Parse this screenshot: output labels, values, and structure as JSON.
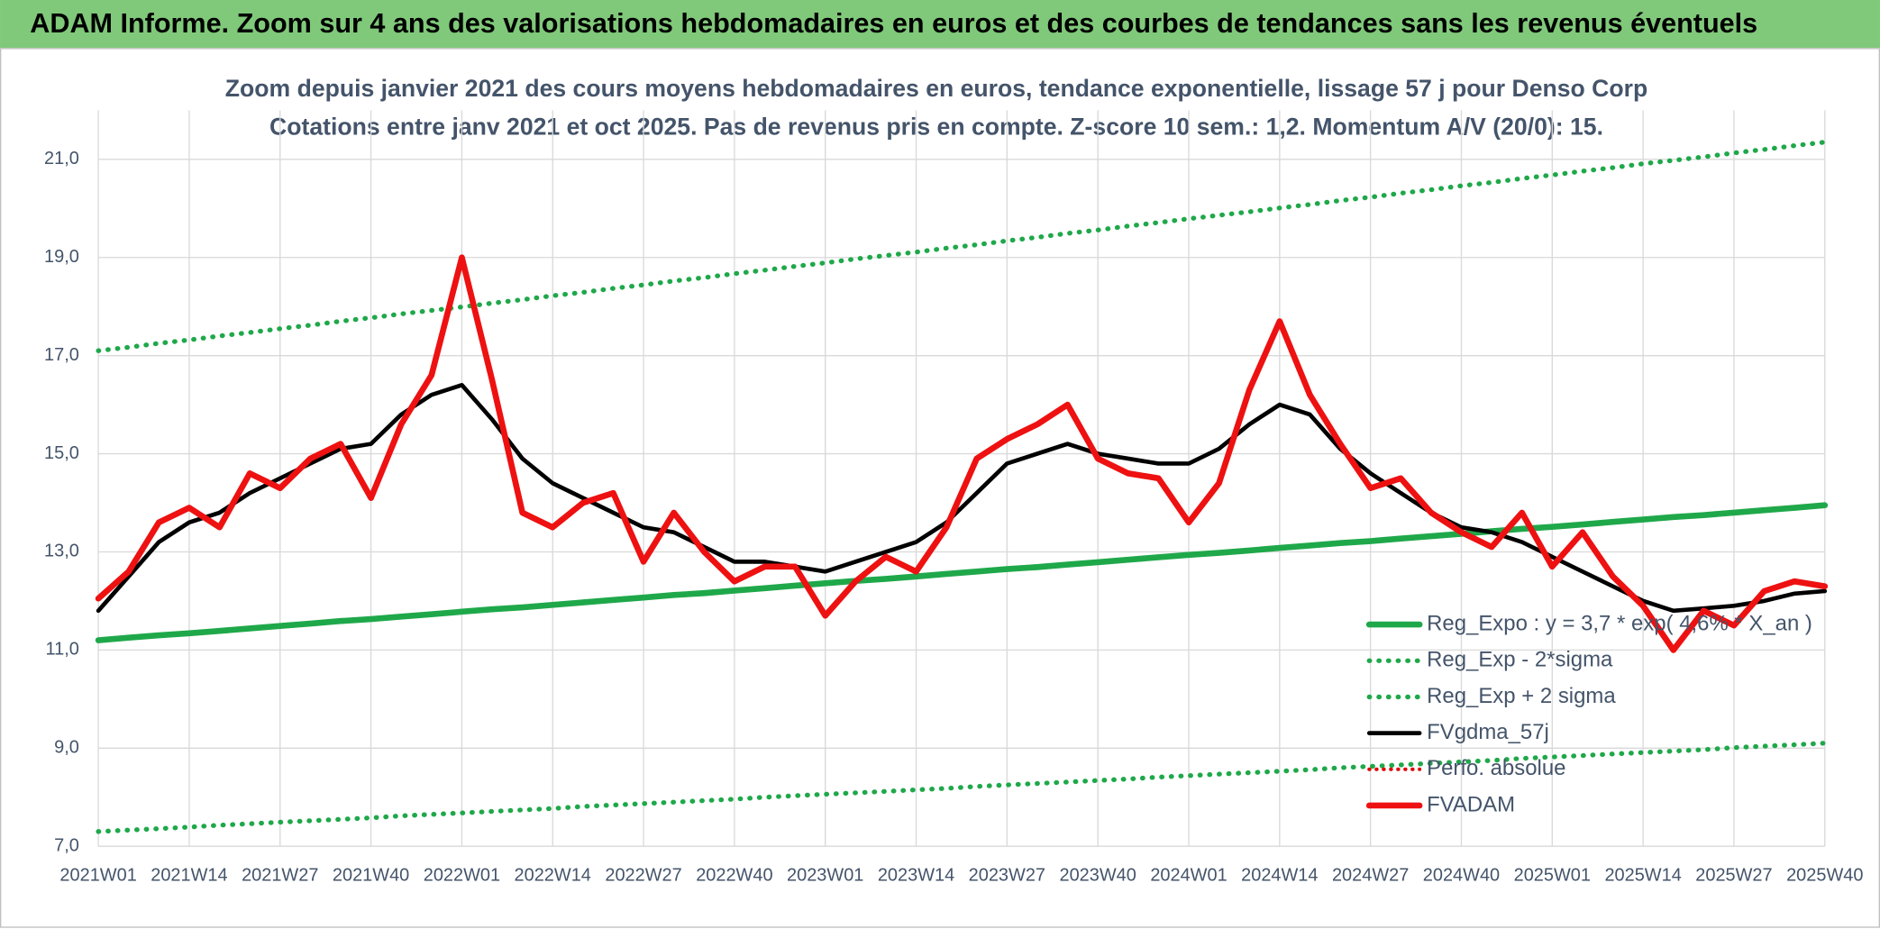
{
  "chart_data": {
    "type": "line",
    "header": "ADAM Informe. Zoom sur 4 ans des valorisations hebdomadaires en euros et des courbes de tendances sans les revenus éventuels",
    "title": "Zoom depuis janvier 2021 des cours moyens hebdomadaires en euros, tendance exponentielle, lissage 57 j pour Denso Corp",
    "subtitle": "Cotations entre janv 2021 et oct 2025. Pas de revenus pris en compte. Z-score 10 sem.: 1,2. Momentum A/V (20/0): 15.",
    "categories": [
      "2021W01",
      null,
      null,
      "2021W14",
      null,
      null,
      "2021W27",
      null,
      null,
      "2021W40",
      null,
      null,
      "2022W01",
      null,
      null,
      "2022W14",
      null,
      null,
      "2022W27",
      null,
      null,
      "2022W40",
      null,
      null,
      "2023W01",
      null,
      null,
      "2023W14",
      null,
      null,
      "2023W27",
      null,
      null,
      "2023W40",
      null,
      null,
      "2024W01",
      null,
      null,
      "2024W14",
      null,
      null,
      "2024W27",
      null,
      null,
      "2024W40",
      null,
      null,
      "2025W01",
      null,
      null,
      "2025W14",
      null,
      null,
      "2025W27",
      null,
      null,
      "2025W40"
    ],
    "ylim": [
      7,
      22
    ],
    "yticks": [
      {
        "value": 7,
        "label": "7,0"
      },
      {
        "value": 9,
        "label": "9,0"
      },
      {
        "value": 11,
        "label": "11,0"
      },
      {
        "value": 13,
        "label": "13,0"
      },
      {
        "value": 15,
        "label": "15,0"
      },
      {
        "value": 17,
        "label": "17,0"
      },
      {
        "value": 19,
        "label": "19,0"
      },
      {
        "value": 21,
        "label": "21,0"
      }
    ],
    "grid": true,
    "legend": "lower right",
    "series": [
      {
        "name": "Reg_Expo : y = 3,7 * exp( 4,6% * X_an )",
        "color": "#1fa84a",
        "style": "solid",
        "width": 5,
        "values": [
          11.2,
          11.25,
          11.3,
          11.34,
          11.39,
          11.44,
          11.49,
          11.54,
          11.59,
          11.63,
          11.68,
          11.73,
          11.78,
          11.83,
          11.87,
          11.92,
          11.97,
          12.02,
          12.07,
          12.12,
          12.16,
          12.21,
          12.26,
          12.31,
          12.36,
          12.41,
          12.45,
          12.5,
          12.55,
          12.6,
          12.65,
          12.69,
          12.74,
          12.79,
          12.84,
          12.89,
          12.94,
          12.98,
          13.03,
          13.08,
          13.13,
          13.18,
          13.22,
          13.27,
          13.32,
          13.37,
          13.42,
          13.47,
          13.51,
          13.56,
          13.61,
          13.66,
          13.71,
          13.75,
          13.8,
          13.85,
          13.9,
          13.95
        ]
      },
      {
        "name": "Reg_Exp - 2*sigma",
        "color": "#1fa84a",
        "style": "dotted",
        "width": 4,
        "values": [
          7.3,
          7.33,
          7.36,
          7.39,
          7.43,
          7.46,
          7.49,
          7.52,
          7.55,
          7.58,
          7.62,
          7.65,
          7.68,
          7.71,
          7.74,
          7.77,
          7.81,
          7.84,
          7.87,
          7.9,
          7.93,
          7.96,
          8.0,
          8.03,
          8.06,
          8.09,
          8.12,
          8.15,
          8.18,
          8.22,
          8.25,
          8.28,
          8.31,
          8.34,
          8.37,
          8.41,
          8.44,
          8.47,
          8.5,
          8.53,
          8.56,
          8.6,
          8.63,
          8.66,
          8.69,
          8.72,
          8.75,
          8.79,
          8.82,
          8.85,
          8.88,
          8.91,
          8.94,
          8.97,
          9.01,
          9.04,
          9.07,
          9.1
        ]
      },
      {
        "name": "Reg_Exp + 2 sigma",
        "color": "#1fa84a",
        "style": "dotted",
        "width": 4,
        "values": [
          17.1,
          17.17,
          17.25,
          17.32,
          17.4,
          17.47,
          17.55,
          17.62,
          17.7,
          17.77,
          17.85,
          17.92,
          17.99,
          18.07,
          18.14,
          18.22,
          18.29,
          18.37,
          18.44,
          18.52,
          18.59,
          18.67,
          18.74,
          18.82,
          18.89,
          18.97,
          19.04,
          19.11,
          19.19,
          19.26,
          19.34,
          19.41,
          19.49,
          19.56,
          19.64,
          19.71,
          19.79,
          19.86,
          19.93,
          20.01,
          20.08,
          20.16,
          20.23,
          20.31,
          20.38,
          20.46,
          20.53,
          20.61,
          20.68,
          20.76,
          20.83,
          20.91,
          20.98,
          21.05,
          21.13,
          21.2,
          21.28,
          21.35
        ]
      },
      {
        "name": "FVgdma_57j",
        "color": "#000000",
        "style": "solid",
        "width": 3.5,
        "values": [
          11.8,
          12.5,
          13.2,
          13.6,
          13.8,
          14.2,
          14.5,
          14.8,
          15.1,
          15.2,
          15.8,
          16.2,
          16.4,
          15.7,
          14.9,
          14.4,
          14.1,
          13.8,
          13.5,
          13.4,
          13.1,
          12.8,
          12.8,
          12.7,
          12.6,
          12.8,
          13.0,
          13.2,
          13.6,
          14.2,
          14.8,
          15.0,
          15.2,
          15.0,
          14.9,
          14.8,
          14.8,
          15.1,
          15.6,
          16.0,
          15.8,
          15.1,
          14.6,
          14.2,
          13.8,
          13.5,
          13.4,
          13.2,
          12.9,
          12.6,
          12.3,
          12.0,
          11.8,
          11.85,
          11.9,
          12.0,
          12.15,
          12.2
        ]
      },
      {
        "name": "Perfo. absolue",
        "color": "#e00000",
        "style": "dotted",
        "width": 3,
        "values": [
          null,
          null,
          null,
          null,
          null,
          null,
          null,
          null,
          null,
          null,
          null,
          null,
          null,
          null,
          null,
          null,
          null,
          null,
          null,
          null,
          null,
          null,
          null,
          null,
          null,
          null,
          null,
          null,
          null,
          null,
          null,
          null,
          null,
          null,
          null,
          null,
          null,
          null,
          null,
          null,
          null,
          null,
          null,
          null,
          null,
          null,
          null,
          null,
          null,
          null,
          null,
          null,
          null,
          null,
          null,
          null,
          null,
          null
        ]
      },
      {
        "name": "FVADAM",
        "color": "#ee1111",
        "style": "solid",
        "width": 5,
        "values": [
          12.05,
          12.6,
          13.6,
          13.9,
          13.5,
          14.6,
          14.3,
          14.9,
          15.2,
          14.1,
          15.6,
          16.6,
          19.0,
          16.5,
          13.8,
          13.5,
          14.0,
          14.2,
          12.8,
          13.8,
          13.0,
          12.4,
          12.7,
          12.7,
          11.7,
          12.4,
          12.9,
          12.6,
          13.5,
          14.9,
          15.3,
          15.6,
          16.0,
          14.9,
          14.6,
          14.5,
          13.6,
          14.4,
          16.3,
          17.7,
          16.2,
          15.2,
          14.3,
          14.5,
          13.8,
          13.4,
          13.1,
          13.8,
          12.7,
          13.4,
          12.5,
          11.9,
          11.0,
          11.8,
          11.5,
          12.2,
          12.4,
          12.3
        ]
      }
    ]
  }
}
